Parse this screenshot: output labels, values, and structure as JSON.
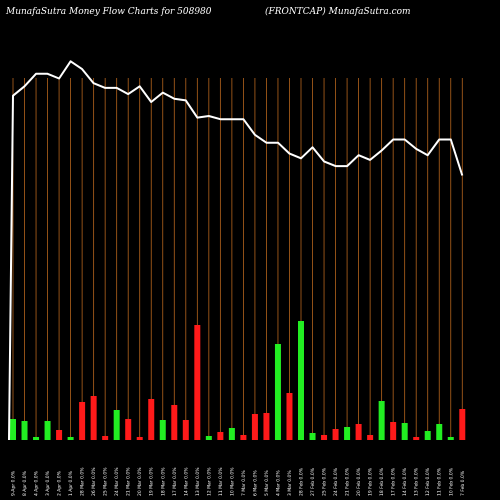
{
  "header": {
    "left": "MunafaSutra  Money Flow  Charts for 508980",
    "right": "(FRONTCAP) MunafaSutra.com"
  },
  "colors": {
    "background": "#000000",
    "gridline": "#b5651d",
    "line": "#ffffff",
    "up": "#22ee22",
    "down": "#ff1a1a"
  },
  "chart_data": {
    "type": "bar",
    "grid": "vertical",
    "x_labels": [
      "9-Apr 0.0%",
      "8 Apr 0.0%",
      "4 Apr 0.0%",
      "3 Apr 0.0%",
      "2 Apr 0.0%",
      "1 Apr 0.0%",
      "28 Mar 0.0%",
      "26 Mar 0.0%",
      "25 Mar 0.0%",
      "24 Mar 0.0%",
      "21 Mar 0.0%",
      "20 Mar 0.0%",
      "19 Mar 0.0%",
      "18 Mar 0.0%",
      "17 Mar 0.0%",
      "14 Mar 0.0%",
      "13 Mar 0.0%",
      "12 Mar 0.0%",
      "11 Mar 0.0%",
      "10 Mar 0.0%",
      "7 Mar 0.0%",
      "6 Mar 0.0%",
      "5 Mar 0.0%",
      "4 Mar 0.0%",
      "3 Mar 0.0%",
      "28 Feb 0.0%",
      "27 Feb 0.0%",
      "25 Feb 0.0%",
      "24 Feb 0.0%",
      "21 Feb 0.0%",
      "20 Feb 0.0%",
      "19 Feb 0.0%",
      "18 Feb 0.0%",
      "17 Feb 0.0%",
      "14 Feb 0.0%",
      "13 Feb 0.0%",
      "12 Feb 0.0%",
      "11 Feb 0.0%",
      "10 Feb 0.0%",
      "7 Feb 0.0%"
    ],
    "price_line": [
      89,
      95,
      103,
      103,
      100,
      111,
      106,
      97,
      94,
      94,
      90,
      95,
      85,
      91,
      87,
      86,
      75,
      76,
      74,
      74,
      74,
      64,
      59,
      59,
      52,
      49,
      56,
      47,
      44,
      44,
      51,
      48,
      54,
      61,
      61,
      55,
      51,
      61,
      61,
      38
    ],
    "volume": [
      21,
      19,
      3,
      19,
      10,
      3,
      38,
      44,
      4,
      30,
      21,
      3,
      41,
      20,
      35,
      20,
      115,
      4,
      8,
      12,
      5,
      26,
      27,
      96,
      47,
      119,
      7,
      5,
      11,
      13,
      16,
      5,
      39,
      18,
      17,
      3,
      9,
      16,
      3,
      31
    ],
    "direction": [
      "up",
      "up",
      "up",
      "up",
      "down",
      "up",
      "down",
      "down",
      "down",
      "up",
      "down",
      "down",
      "down",
      "up",
      "down",
      "down",
      "down",
      "up",
      "down",
      "up",
      "down",
      "down",
      "down",
      "up",
      "down",
      "up",
      "up",
      "down",
      "down",
      "up",
      "down",
      "down",
      "up",
      "down",
      "up",
      "down",
      "up",
      "up",
      "up",
      "down"
    ],
    "volume_ylim": [
      0,
      125
    ]
  }
}
